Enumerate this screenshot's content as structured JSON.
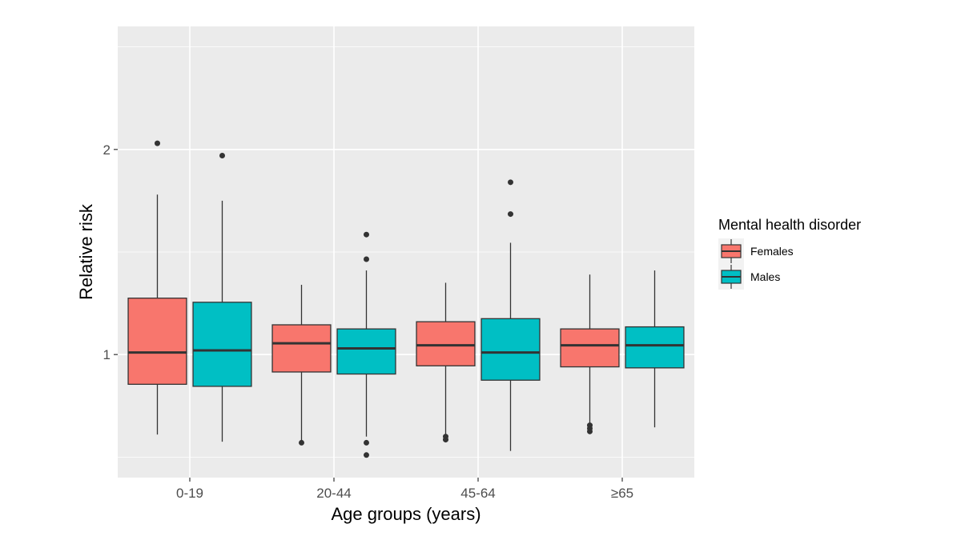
{
  "chart_data": {
    "type": "boxplot",
    "xlabel": "Age groups (years)",
    "ylabel": "Relative risk",
    "ylim": [
      0.4,
      2.6
    ],
    "y_ticks": [
      1,
      2
    ],
    "y_tick_labels": [
      "1",
      "2"
    ],
    "grid": true,
    "legend": {
      "title": "Mental health disorder",
      "position": "right"
    },
    "categories": [
      "0-19",
      "20-44",
      "45-64",
      "≥65"
    ],
    "series": [
      {
        "name": "Females",
        "color": "#F8766D",
        "boxes": [
          {
            "whisker_low": 0.61,
            "q1": 0.855,
            "median": 1.01,
            "q3": 1.275,
            "whisker_high": 1.78,
            "outliers": [
              2.03
            ]
          },
          {
            "whisker_low": 0.58,
            "q1": 0.915,
            "median": 1.055,
            "q3": 1.145,
            "whisker_high": 1.34,
            "outliers": [
              0.57
            ]
          },
          {
            "whisker_low": 0.61,
            "q1": 0.945,
            "median": 1.045,
            "q3": 1.16,
            "whisker_high": 1.35,
            "outliers": [
              0.6,
              0.585
            ]
          },
          {
            "whisker_low": 0.66,
            "q1": 0.94,
            "median": 1.045,
            "q3": 1.125,
            "whisker_high": 1.39,
            "outliers": [
              0.655,
              0.64,
              0.625
            ]
          }
        ]
      },
      {
        "name": "Males",
        "color": "#00BFC4",
        "boxes": [
          {
            "whisker_low": 0.575,
            "q1": 0.845,
            "median": 1.02,
            "q3": 1.255,
            "whisker_high": 1.75,
            "outliers": [
              1.97
            ]
          },
          {
            "whisker_low": 0.6,
            "q1": 0.905,
            "median": 1.03,
            "q3": 1.125,
            "whisker_high": 1.41,
            "outliers": [
              0.57,
              0.51,
              1.465,
              1.585
            ]
          },
          {
            "whisker_low": 0.53,
            "q1": 0.875,
            "median": 1.01,
            "q3": 1.175,
            "whisker_high": 1.545,
            "outliers": [
              1.685,
              1.84
            ]
          },
          {
            "whisker_low": 0.645,
            "q1": 0.935,
            "median": 1.045,
            "q3": 1.135,
            "whisker_high": 1.41,
            "outliers": []
          }
        ]
      }
    ]
  }
}
